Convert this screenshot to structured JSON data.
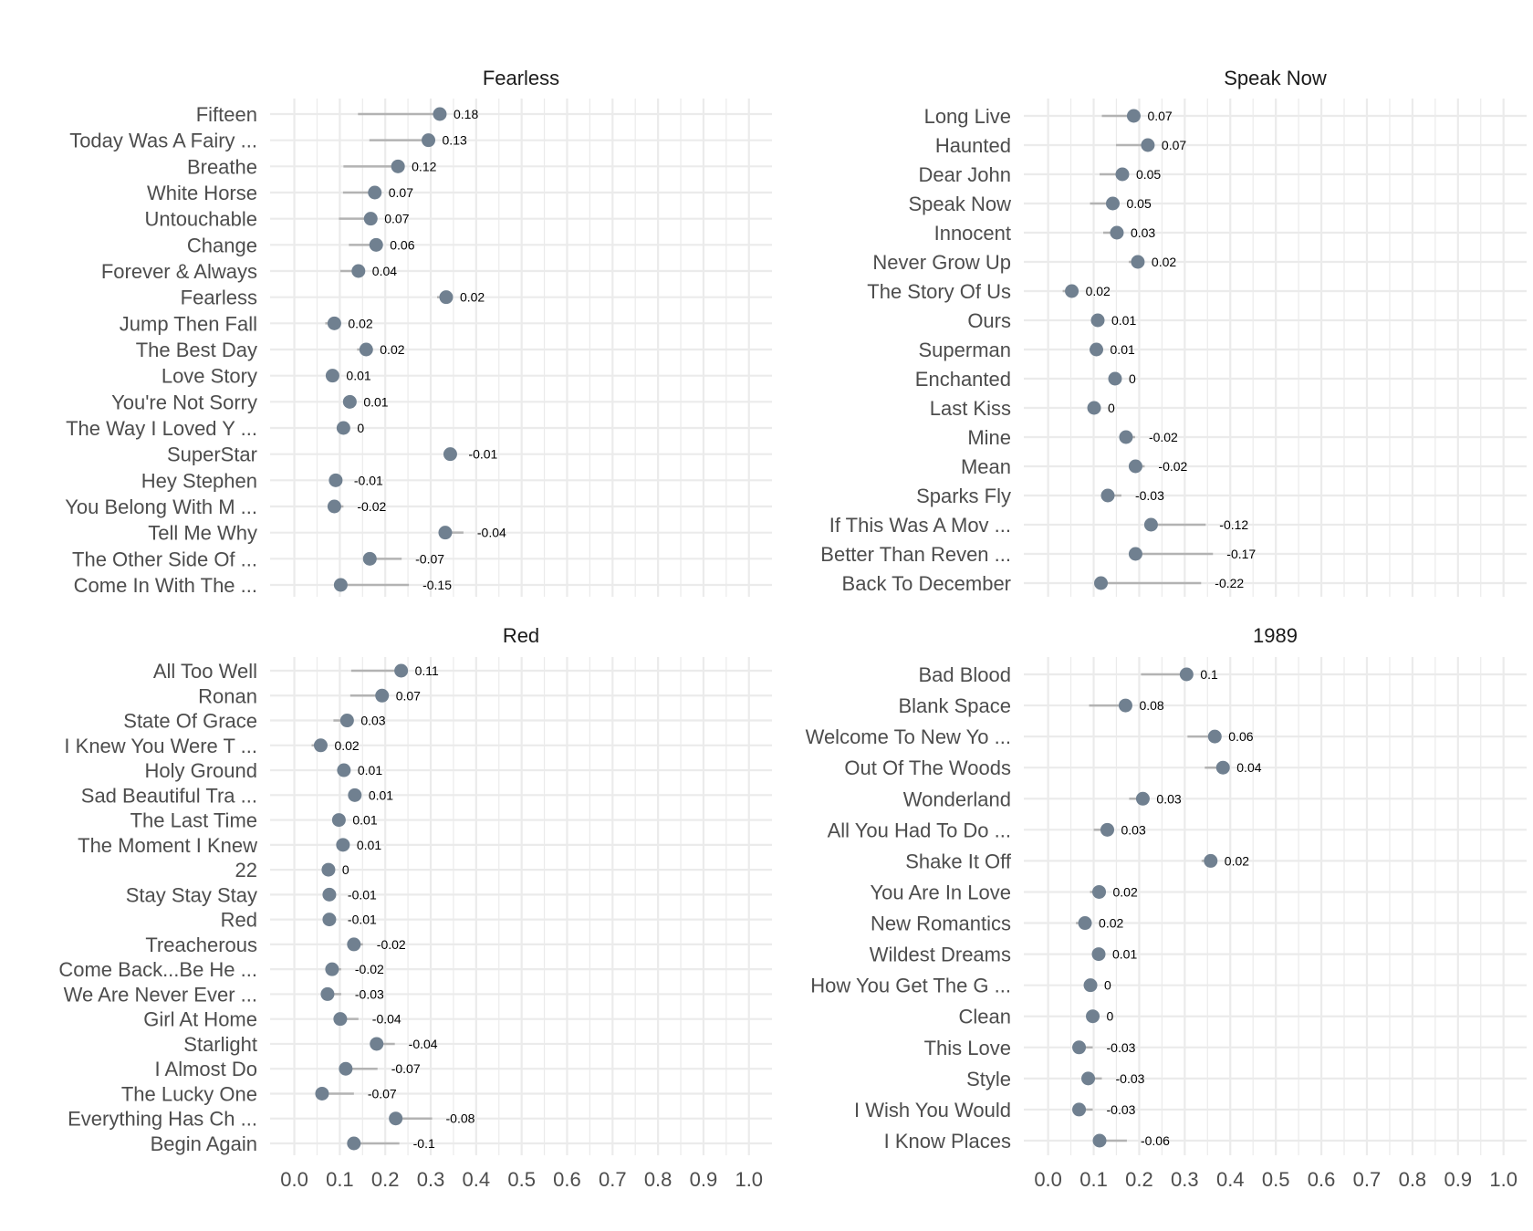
{
  "chart_data": [
    {
      "type": "dot",
      "title": "Fearless",
      "categories": [
        "Fifteen",
        "Today Was A Fairy ...",
        "Breathe",
        "White Horse",
        "Untouchable",
        "Change",
        "Forever & Always",
        "Fearless",
        "Jump Then Fall",
        "The Best Day",
        "Love Story",
        "You're Not Sorry",
        "The Way I Loved Y ...",
        "SuperStar",
        "Hey Stephen",
        "You Belong With M ...",
        "Tell Me Why",
        "The Other Side Of ...",
        "Come In With The  ..."
      ],
      "series": [
        {
          "values": [
            0.32,
            0.295,
            0.228,
            0.177,
            0.168,
            0.18,
            0.141,
            0.334,
            0.088,
            0.158,
            0.084,
            0.122,
            0.108,
            0.343,
            0.091,
            0.088,
            0.332,
            0.166,
            0.102
          ]
        },
        {
          "values": [
            0.14,
            0.165,
            0.108,
            0.107,
            0.098,
            0.12,
            0.101,
            0.314,
            0.068,
            0.138,
            0.074,
            0.112,
            0.108,
            0.353,
            0.101,
            0.108,
            0.372,
            0.236,
            0.252
          ]
        }
      ],
      "data_labels": [
        "0.18",
        "0.13",
        "0.12",
        "0.07",
        "0.07",
        "0.06",
        "0.04",
        "0.02",
        "0.02",
        "0.02",
        "0.01",
        "0.01",
        "0",
        "-0.01",
        "-0.01",
        "-0.02",
        "-0.04",
        "-0.07",
        "-0.15"
      ],
      "xticks": [
        "0.0",
        "0.1",
        "0.2",
        "0.3",
        "0.4",
        "0.5",
        "0.6",
        "0.7",
        "0.8",
        "0.9",
        "1.0"
      ],
      "xlim": [
        0,
        1
      ],
      "grid": true
    },
    {
      "type": "dot",
      "title": "Speak Now",
      "categories": [
        "Long Live",
        "Haunted",
        "Dear John",
        "Speak Now",
        "Innocent",
        "Never Grow Up",
        "The Story Of Us",
        "Ours",
        "Superman",
        "Enchanted",
        "Last Kiss",
        "Mine",
        "Mean",
        "Sparks Fly",
        "If This Was A Mov ...",
        "Better Than Reven ...",
        "Back To December"
      ],
      "series": [
        {
          "values": [
            0.188,
            0.219,
            0.163,
            0.142,
            0.151,
            0.197,
            0.052,
            0.109,
            0.106,
            0.147,
            0.101,
            0.171,
            0.192,
            0.131,
            0.226,
            0.192,
            0.116
          ]
        },
        {
          "values": [
            0.118,
            0.149,
            0.113,
            0.092,
            0.121,
            0.177,
            0.032,
            0.099,
            0.096,
            0.147,
            0.101,
            0.191,
            0.212,
            0.161,
            0.346,
            0.362,
            0.336
          ]
        }
      ],
      "data_labels": [
        "0.07",
        "0.07",
        "0.05",
        "0.05",
        "0.03",
        "0.02",
        "0.02",
        "0.01",
        "0.01",
        "0",
        "0",
        "-0.02",
        "-0.02",
        "-0.03",
        "-0.12",
        "-0.17",
        "-0.22"
      ],
      "xticks": [
        "0.0",
        "0.1",
        "0.2",
        "0.3",
        "0.4",
        "0.5",
        "0.6",
        "0.7",
        "0.8",
        "0.9",
        "1.0"
      ],
      "xlim": [
        0,
        1
      ],
      "grid": true
    },
    {
      "type": "dot",
      "title": "Red",
      "categories": [
        "All Too Well",
        "Ronan",
        "State Of Grace",
        "I Knew You Were T ...",
        "Holy Ground",
        "Sad Beautiful Tra ...",
        "The Last Time",
        "The Moment I Knew",
        "22",
        "Stay Stay Stay",
        "Red",
        "Treacherous",
        "Come Back...Be He ...",
        "We Are Never Ever ...",
        "Girl At Home",
        "Starlight",
        "I Almost Do",
        "The Lucky One",
        "Everything Has Ch ...",
        "Begin Again"
      ],
      "series": [
        {
          "values": [
            0.235,
            0.193,
            0.116,
            0.058,
            0.109,
            0.133,
            0.098,
            0.107,
            0.075,
            0.077,
            0.077,
            0.131,
            0.083,
            0.073,
            0.101,
            0.181,
            0.113,
            0.061,
            0.223,
            0.131
          ]
        },
        {
          "values": [
            0.125,
            0.123,
            0.086,
            0.038,
            0.099,
            0.123,
            0.088,
            0.097,
            0.075,
            0.087,
            0.087,
            0.151,
            0.103,
            0.103,
            0.141,
            0.221,
            0.183,
            0.131,
            0.303,
            0.231
          ]
        }
      ],
      "data_labels": [
        "0.11",
        "0.07",
        "0.03",
        "0.02",
        "0.01",
        "0.01",
        "0.01",
        "0.01",
        "0",
        "-0.01",
        "-0.01",
        "-0.02",
        "-0.02",
        "-0.03",
        "-0.04",
        "-0.04",
        "-0.07",
        "-0.07",
        "-0.08",
        "-0.1"
      ],
      "xticks": [
        "0.0",
        "0.1",
        "0.2",
        "0.3",
        "0.4",
        "0.5",
        "0.6",
        "0.7",
        "0.8",
        "0.9",
        "1.0"
      ],
      "xlim": [
        0,
        1
      ],
      "grid": true
    },
    {
      "type": "dot",
      "title": "1989",
      "categories": [
        "Bad Blood",
        "Blank Space",
        "Welcome To New Yo ...",
        "Out Of The Woods",
        "Wonderland",
        "All You Had To Do ...",
        "Shake It Off",
        "You Are In Love",
        "New Romantics",
        "Wildest Dreams",
        "How You Get The G ...",
        "Clean",
        "This Love",
        "Style",
        "I Wish You Would",
        "I Know Places"
      ],
      "series": [
        {
          "values": [
            0.304,
            0.17,
            0.366,
            0.384,
            0.208,
            0.13,
            0.357,
            0.112,
            0.081,
            0.111,
            0.093,
            0.098,
            0.068,
            0.088,
            0.068,
            0.113
          ]
        },
        {
          "values": [
            0.204,
            0.09,
            0.306,
            0.344,
            0.178,
            0.1,
            0.337,
            0.092,
            0.061,
            0.101,
            0.093,
            0.098,
            0.098,
            0.118,
            0.098,
            0.173
          ]
        }
      ],
      "data_labels": [
        "0.1",
        "0.08",
        "0.06",
        "0.04",
        "0.03",
        "0.03",
        "0.02",
        "0.02",
        "0.02",
        "0.01",
        "0",
        "0",
        "-0.03",
        "-0.03",
        "-0.03",
        "-0.06"
      ],
      "xticks": [
        "0.0",
        "0.1",
        "0.2",
        "0.3",
        "0.4",
        "0.5",
        "0.6",
        "0.7",
        "0.8",
        "0.9",
        "1.0"
      ],
      "xlim": [
        0,
        1
      ],
      "grid": true
    }
  ],
  "colors": {
    "point": "#708090",
    "segment": "#b3b3b3",
    "grid": "#ebebeb",
    "axis_text": "#4d4d4d",
    "title_text": "#1a1a1a",
    "label_text": "#000000"
  }
}
